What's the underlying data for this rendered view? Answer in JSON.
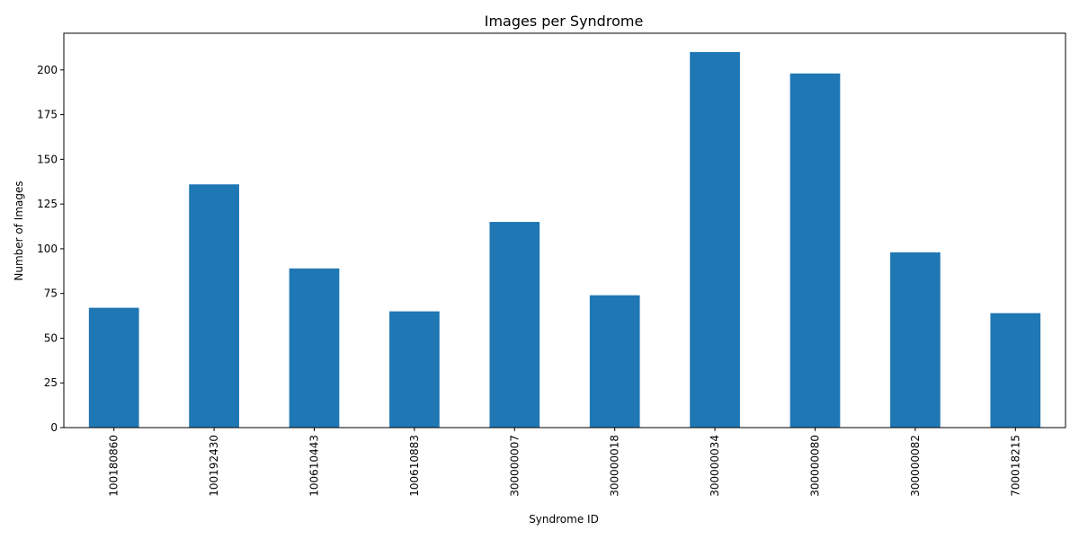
{
  "chart_data": {
    "type": "bar",
    "title": "Images per Syndrome",
    "xlabel": "Syndrome ID",
    "ylabel": "Number of Images",
    "categories": [
      "100180860",
      "100192430",
      "100610443",
      "100610883",
      "300000007",
      "300000018",
      "300000034",
      "300000080",
      "300000082",
      "700018215"
    ],
    "values": [
      67,
      136,
      89,
      65,
      115,
      74,
      210,
      198,
      98,
      64
    ],
    "ylim": [
      0,
      220.5
    ],
    "yticks": [
      0,
      25,
      50,
      75,
      100,
      125,
      150,
      175,
      200
    ],
    "grid": false,
    "legend": "none",
    "bar_color": "#1f77b4"
  }
}
